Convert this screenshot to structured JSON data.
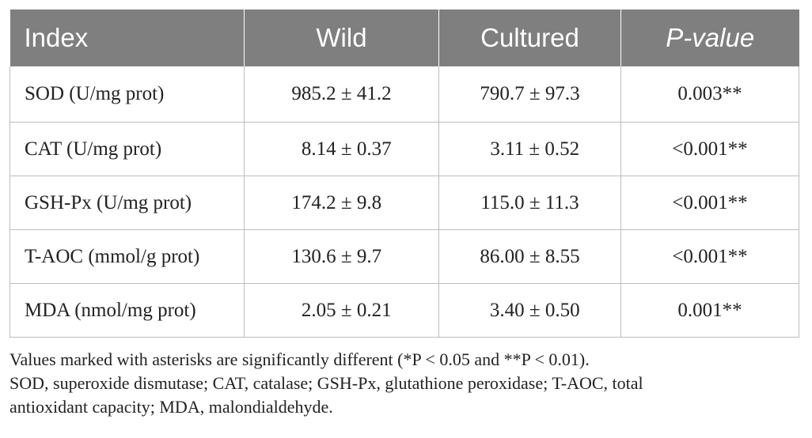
{
  "table": {
    "headers": [
      "Index",
      "Wild",
      "Cultured",
      "P-value"
    ],
    "rows": [
      {
        "index": "SOD (U/mg prot)",
        "wild": "985.2 ± 41.2",
        "cultured": "790.7 ± 97.3",
        "p_value": "0.003**"
      },
      {
        "index": "CAT (U/mg prot)",
        "wild": "  8.14 ± 0.37",
        "cultured": "  3.11 ± 0.52",
        "p_value": "<0.001**"
      },
      {
        "index": "GSH-Px (U/mg prot)",
        "wild": "174.2 ± 9.8  ",
        "cultured": "115.0 ± 11.3",
        "p_value": "<0.001**"
      },
      {
        "index": "T-AOC (mmol/g prot)",
        "wild": "130.6 ± 9.7  ",
        "cultured": "86.00 ± 8.55",
        "p_value": "<0.001**"
      },
      {
        "index": "MDA (nmol/mg prot)",
        "wild": "  2.05 ± 0.21",
        "cultured": "  3.40 ± 0.50",
        "p_value": "0.001**"
      }
    ]
  },
  "footnotes": {
    "significance": "Values marked with asterisks are significantly different (*P < 0.05 and **P < 0.01).",
    "abbreviations_line1": "SOD, superoxide dismutase; CAT, catalase; GSH-Px, glutathione peroxidase; T-AOC, total",
    "abbreviations_line2": "antioxidant capacity; MDA, malondialdehyde."
  }
}
